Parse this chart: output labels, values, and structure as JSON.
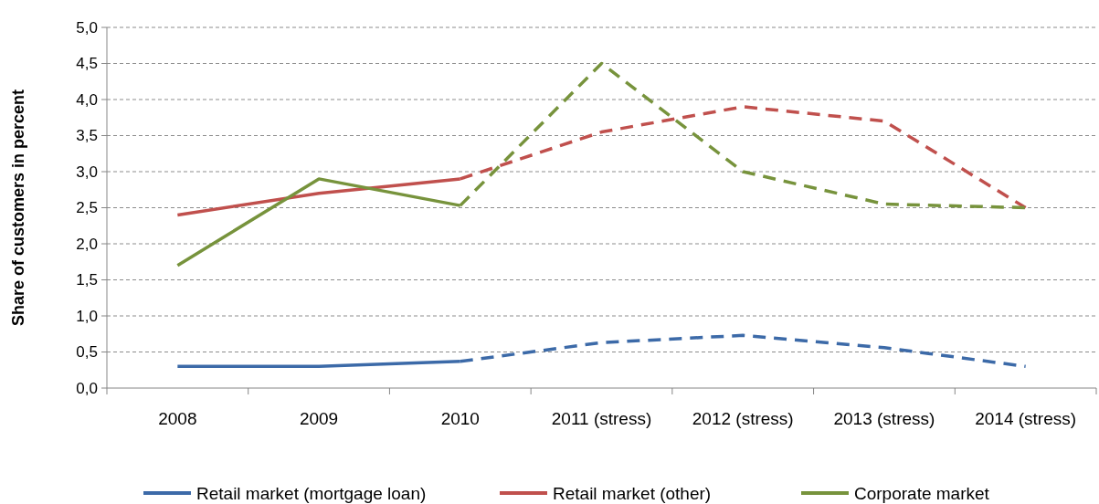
{
  "chart_data": {
    "type": "line",
    "ylabel": "Share of customers in percent",
    "categories": [
      "2008",
      "2009",
      "2010",
      "2011 (stress)",
      "2012 (stress)",
      "2013 (stress)",
      "2014 (stress)"
    ],
    "series": [
      {
        "name": "Retail market  (mortgage loan)",
        "color": "#3c6aa8",
        "values": [
          0.3,
          0.3,
          0.37,
          null,
          null,
          null,
          null
        ],
        "line_style": "solid"
      },
      {
        "color": "#3c6aa8",
        "values": [
          null,
          null,
          0.37,
          0.63,
          0.73,
          0.56,
          0.3
        ],
        "line_style": "dashed"
      },
      {
        "name": "Retail market  (other)",
        "color": "#c0504d",
        "values": [
          2.4,
          2.7,
          2.9,
          null,
          null,
          null,
          null
        ],
        "line_style": "solid"
      },
      {
        "color": "#c0504d",
        "values": [
          null,
          null,
          2.9,
          3.55,
          3.9,
          3.7,
          2.5
        ],
        "line_style": "dashed"
      },
      {
        "name": "Corporate market",
        "color": "#77933c",
        "values": [
          1.7,
          2.9,
          2.53,
          null,
          null,
          null,
          null
        ],
        "line_style": "solid"
      },
      {
        "color": "#77933c",
        "values": [
          null,
          null,
          2.53,
          4.5,
          3.0,
          2.55,
          2.5
        ],
        "line_style": "dashed"
      }
    ],
    "ylim": [
      0,
      5
    ],
    "yticks": [
      {
        "value": 0,
        "label": "0,0"
      },
      {
        "value": 0.5,
        "label": "0,5"
      },
      {
        "value": 1,
        "label": "1,0"
      },
      {
        "value": 1.5,
        "label": "1,5"
      },
      {
        "value": 2,
        "label": "2,0"
      },
      {
        "value": 2.5,
        "label": "2,5"
      },
      {
        "value": 3,
        "label": "3,0"
      },
      {
        "value": 3.5,
        "label": "3,5"
      },
      {
        "value": 4,
        "label": "4,0"
      },
      {
        "value": 4.5,
        "label": "4,5"
      },
      {
        "value": 5,
        "label": "5,0"
      }
    ],
    "grid": "y",
    "legend": "bottom",
    "marker": "none"
  }
}
